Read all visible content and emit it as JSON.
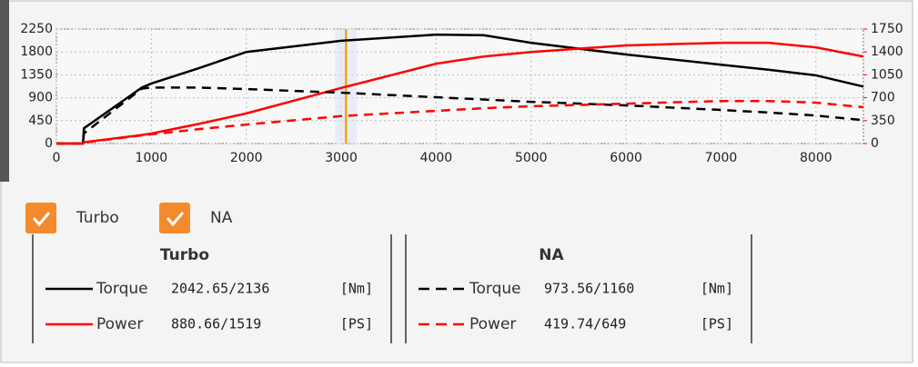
{
  "chart_data": {
    "type": "line",
    "x": [
      0,
      280,
      290,
      900,
      1000,
      1500,
      2000,
      3000,
      4000,
      4500,
      5000,
      6000,
      7000,
      7500,
      8000,
      8500
    ],
    "xlim": [
      0,
      8500
    ],
    "xticks": [
      0,
      1000,
      2000,
      3000,
      4000,
      5000,
      6000,
      7000,
      8000
    ],
    "ylim": [
      0,
      2250
    ],
    "yticks": [
      0,
      450,
      900,
      1350,
      1800,
      2250
    ],
    "y2lim": [
      0,
      1750
    ],
    "y2ticks": [
      0,
      350,
      700,
      1050,
      1400,
      1750
    ],
    "y2color": "#ff0000",
    "grid": true,
    "cursor": {
      "value": 3050,
      "color": "#f5a800"
    },
    "legend": [
      {
        "label": "Turbo",
        "checked": true
      },
      {
        "label": "NA",
        "checked": true
      }
    ],
    "series": [
      {
        "name": "Torque",
        "color": "#000000",
        "dashed": false,
        "reading": "2042.65/2136",
        "unit": "[Nm]",
        "values": [
          0,
          0,
          300,
          1100,
          1180,
          1480,
          1800,
          2020,
          2140,
          2130,
          1980,
          1750,
          1550,
          1450,
          1340,
          1120
        ]
      },
      {
        "name": "Power",
        "color": "#ff0000",
        "dashed": false,
        "axis": "y2",
        "reading": "880.66/1519",
        "unit": "[PS]",
        "values": [
          0,
          0,
          20,
          130,
          153,
          300,
          460,
          850,
          1220,
          1330,
          1400,
          1500,
          1540,
          1540,
          1470,
          1330
        ]
      },
      {
        "name": "Torque",
        "color": "#000000",
        "dashed": true,
        "reading": "973.56/1160",
        "unit": "[Nm]",
        "values": [
          0,
          0,
          200,
          1080,
          1100,
          1100,
          1070,
          1000,
          910,
          865,
          820,
          750,
          660,
          610,
          550,
          460
        ]
      },
      {
        "name": "Power",
        "color": "#ff0000",
        "dashed": true,
        "axis": "y2",
        "reading": "419.74/649",
        "unit": "[PS]",
        "values": [
          0,
          0,
          15,
          125,
          140,
          220,
          290,
          420,
          500,
          540,
          570,
          610,
          650,
          650,
          625,
          555
        ]
      }
    ]
  }
}
